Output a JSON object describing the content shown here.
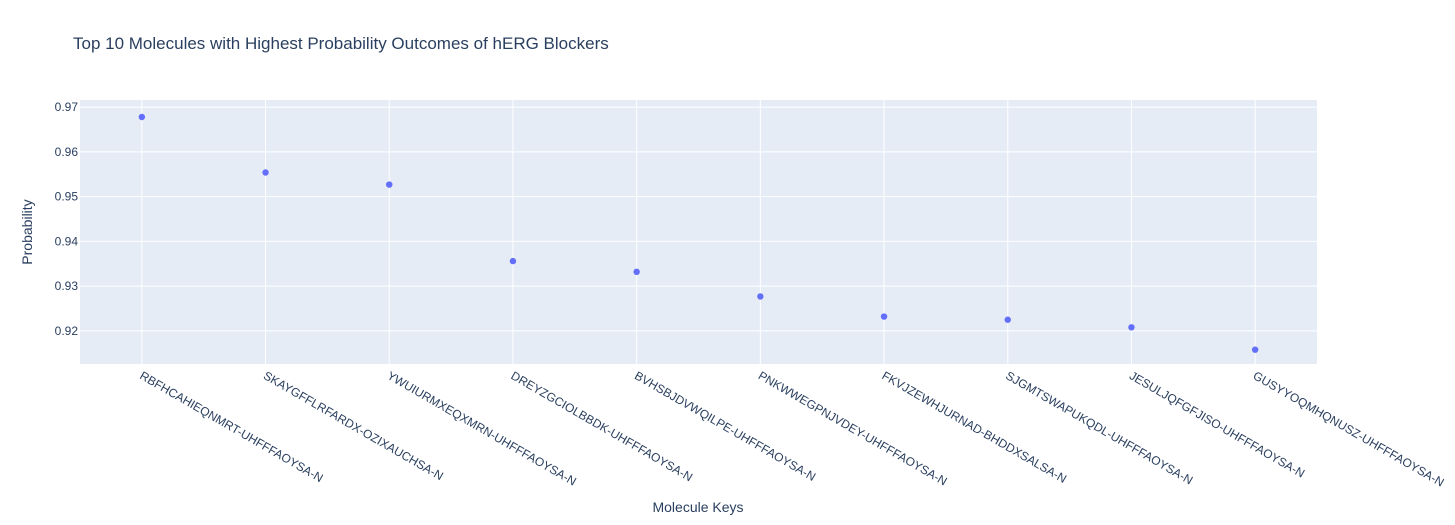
{
  "chart_data": {
    "type": "scatter",
    "title": "Top 10 Molecules with Highest Probability Outcomes of hERG Blockers",
    "xlabel": "Molecule Keys",
    "ylabel": "Probability",
    "categories": [
      "RBFHCAHIEQNMRT-UHFFFAOYSA-N",
      "SKAYGFFLRFARDX-OZIXAUCHSA-N",
      "YWUIURMXEQXMRN-UHFFFAOYSA-N",
      "DREYZGCIOLBBDK-UHFFFAOYSA-N",
      "BVHSBJDVWQILPE-UHFFFAOYSA-N",
      "PNKWWEGPNJVDEY-UHFFFAOYSA-N",
      "FKVJZEWHJURNAD-BHDDXSALSA-N",
      "SJGMTSWAPUKQDL-UHFFFAOYSA-N",
      "JESULJQFGFJISO-UHFFFAOYSA-N",
      "GUSYYOQMHQNUSZ-UHFFFAOYSA-N"
    ],
    "values": [
      0.9678,
      0.9554,
      0.9527,
      0.9356,
      0.9332,
      0.9277,
      0.9232,
      0.9225,
      0.9208,
      0.9158
    ],
    "ylim": [
      0.9126,
      0.9716
    ],
    "yticks": [
      "0.92",
      "0.93",
      "0.94",
      "0.95",
      "0.96",
      "0.97"
    ],
    "grid": true,
    "legend": "none",
    "colors": {
      "marker": "#636efa",
      "plot_bg": "#e5ecf6",
      "grid": "#ffffff",
      "text": "#2a3f5f"
    }
  }
}
